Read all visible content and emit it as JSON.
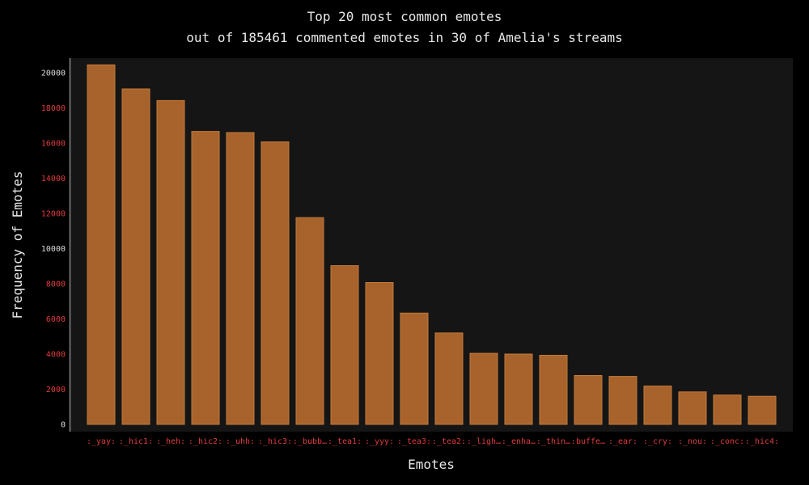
{
  "chart_data": {
    "type": "bar",
    "title": "Top 20 most common emotes",
    "subtitle": "out of 185461 commented emotes in 30 of Amelia's streams",
    "xlabel": "Emotes",
    "ylabel": "Frequency of Emotes",
    "ylim": [
      0,
      20500
    ],
    "yticks": [
      "0",
      "2000",
      "4000",
      "6000",
      "8000",
      "10000",
      "12000",
      "14000",
      "16000",
      "18000",
      "20000"
    ],
    "categories": [
      ":_yay:",
      ":_hic1:",
      ":_heh:",
      ":_hic2:",
      ":_uhh:",
      ":_hic3:",
      ":_bubb…",
      ":_tea1:",
      ":_yyy:",
      ":_tea3:",
      ":_tea2:",
      ":_ligh…",
      ":_enha…",
      ":_thin…",
      ":buffe…",
      ":_ear:",
      ":_cry:",
      ":_nou:",
      ":_conc:",
      ":_hic4:"
    ],
    "values": [
      20450,
      19080,
      18420,
      16660,
      16600,
      16070,
      11760,
      9030,
      8070,
      6330,
      5200,
      4040,
      4000,
      3930,
      2780,
      2730,
      2180,
      1850,
      1670,
      1600
    ],
    "grid": false,
    "legend": "none"
  },
  "colors": {
    "background": "#000000",
    "plot_background": "#151515",
    "bar_fill": "#a8622b",
    "bar_stroke": "#c27a3a",
    "axis": "#888888",
    "text": "#e8e8e8",
    "tick_text_accent": "#e03c3c",
    "tick_text_plain": "#dddddd"
  }
}
